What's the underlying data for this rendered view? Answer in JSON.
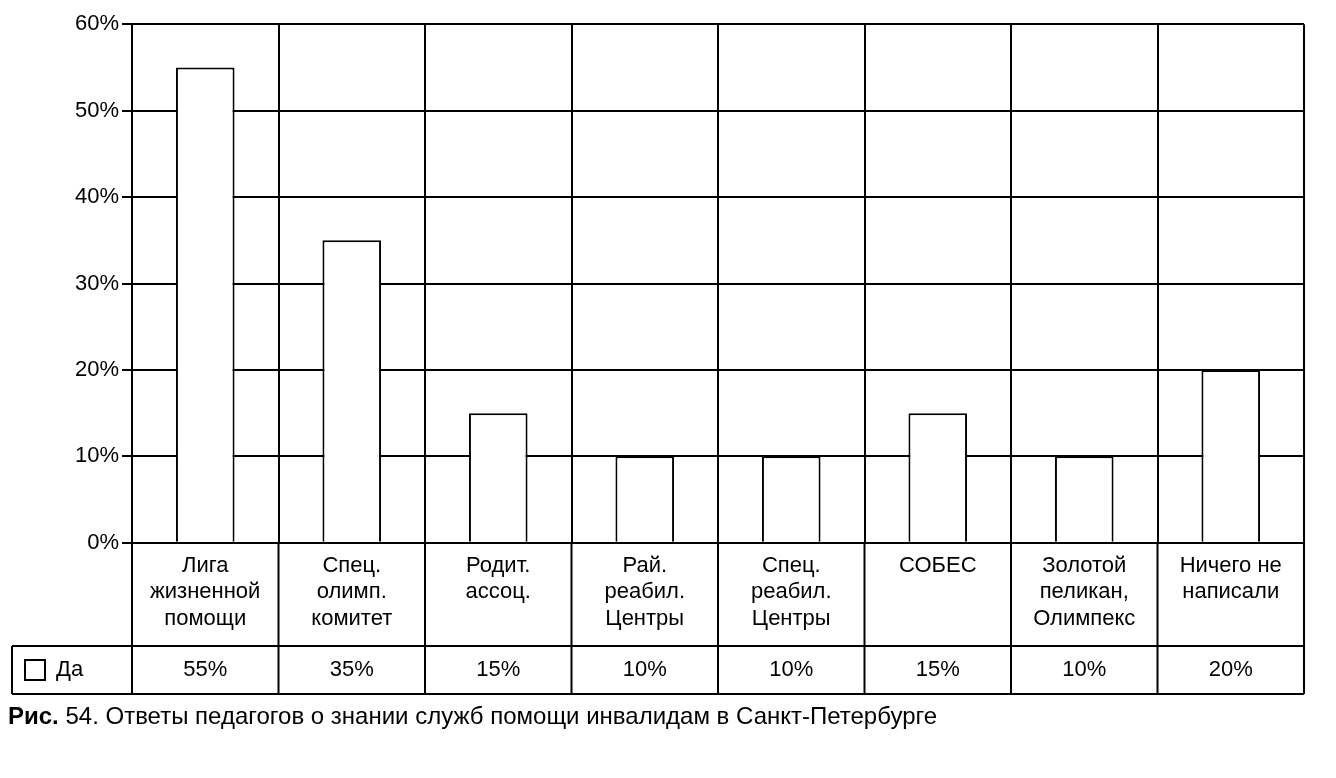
{
  "chart_data": {
    "type": "bar",
    "title": "Рис. 54. Ответы педагогов о знании служб помощи инвалидам в Санкт-Петербурге",
    "categories": [
      "Лига жизненной помощи",
      "Спец. олимп. комитет",
      "Родит. ассоц.",
      "Рай. реабил. Центры",
      "Спец. реабил. Центры",
      "СОБЕС",
      "Золотой пеликан, Олимпекс",
      "Ничего не написали"
    ],
    "series": [
      {
        "name": "Да",
        "color": "#ffffff",
        "values": [
          55,
          35,
          15,
          10,
          10,
          15,
          10,
          20
        ],
        "value_labels": [
          "55%",
          "35%",
          "15%",
          "10%",
          "10%",
          "15%",
          "10%",
          "20%"
        ]
      }
    ],
    "ylim": [
      0,
      60
    ],
    "yticks": [
      {
        "value": 0,
        "label": "0%"
      },
      {
        "value": 10,
        "label": "10%"
      },
      {
        "value": 20,
        "label": "20%"
      },
      {
        "value": 30,
        "label": "30%"
      },
      {
        "value": 40,
        "label": "40%"
      },
      {
        "value": 50,
        "label": "50%"
      },
      {
        "value": 60,
        "label": "60%"
      }
    ],
    "grid": true,
    "legend": "bottom left"
  }
}
